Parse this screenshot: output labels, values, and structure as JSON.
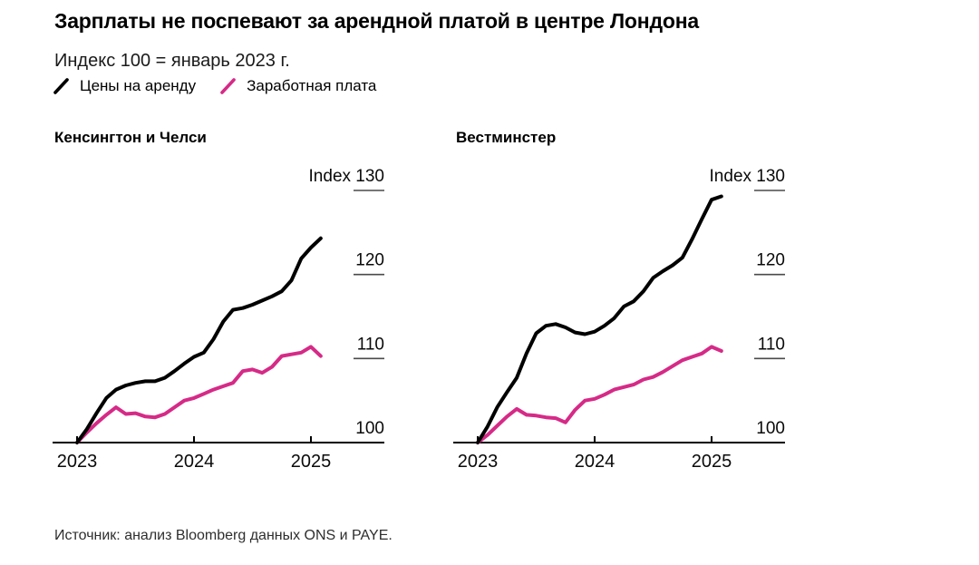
{
  "header": {
    "title": "Зарплаты не поспевают за арендной платой в центре Лондона",
    "subtitle": "Индекс 100 = январь 2023 г."
  },
  "legend": {
    "items": [
      {
        "label": "Цены на аренду",
        "color": "#000000"
      },
      {
        "label": "Заработная плата",
        "color": "#d62a87"
      }
    ]
  },
  "footer": {
    "source": "Источник: анализ Bloomberg данных ONS и PAYE."
  },
  "chart_data": [
    {
      "type": "line",
      "title": "Кенсингтон и Челси",
      "index_prefix": "Index",
      "x_start": "2023-01",
      "x_frequency": "monthly",
      "x_tick_labels": [
        "2023",
        "2024",
        "2025"
      ],
      "x_tick_month_indices": [
        0,
        12,
        24
      ],
      "ylim": [
        100,
        130
      ],
      "yticks": [
        130,
        120,
        110,
        100
      ],
      "grid": false,
      "legend_position": "top-of-figure",
      "series": [
        {
          "name": "Цены на аренду",
          "color": "#000000",
          "values": [
            100,
            101.6,
            103.5,
            105.3,
            106.3,
            106.8,
            107.1,
            107.3,
            107.3,
            107.7,
            108.5,
            109.4,
            110.2,
            110.7,
            112.3,
            114.4,
            115.8,
            116.0,
            116.4,
            116.9,
            117.4,
            118.0,
            119.3,
            121.9,
            123.2,
            124.3
          ]
        },
        {
          "name": "Заработная плата",
          "color": "#d62a87",
          "values": [
            100,
            101.2,
            102.3,
            103.3,
            104.2,
            103.4,
            103.5,
            103.1,
            103.0,
            103.4,
            104.2,
            105.0,
            105.3,
            105.8,
            106.3,
            106.7,
            107.1,
            108.5,
            108.7,
            108.3,
            109.0,
            110.3,
            110.5,
            110.7,
            111.4,
            110.3
          ]
        }
      ]
    },
    {
      "type": "line",
      "title": "Вестминстер",
      "index_prefix": "Index",
      "x_start": "2023-01",
      "x_frequency": "monthly",
      "x_tick_labels": [
        "2023",
        "2024",
        "2025"
      ],
      "x_tick_month_indices": [
        0,
        12,
        24
      ],
      "ylim": [
        100,
        130
      ],
      "yticks": [
        130,
        120,
        110,
        100
      ],
      "grid": false,
      "legend_position": "top-of-figure",
      "series": [
        {
          "name": "Цены на аренду",
          "color": "#000000",
          "values": [
            100,
            101.9,
            104.2,
            106.0,
            107.7,
            110.6,
            113.0,
            113.9,
            114.1,
            113.7,
            113.1,
            112.9,
            113.2,
            113.9,
            114.8,
            116.2,
            116.8,
            118.0,
            119.6,
            120.4,
            121.1,
            122.0,
            124.2,
            126.6,
            128.9,
            129.3
          ]
        },
        {
          "name": "Заработная плата",
          "color": "#d62a87",
          "values": [
            100,
            100.9,
            102.0,
            103.1,
            104.0,
            103.3,
            103.2,
            103.0,
            102.9,
            102.4,
            103.9,
            105.0,
            105.2,
            105.7,
            106.3,
            106.6,
            106.9,
            107.5,
            107.8,
            108.4,
            109.1,
            109.8,
            110.2,
            110.6,
            111.4,
            110.9
          ]
        }
      ]
    }
  ]
}
